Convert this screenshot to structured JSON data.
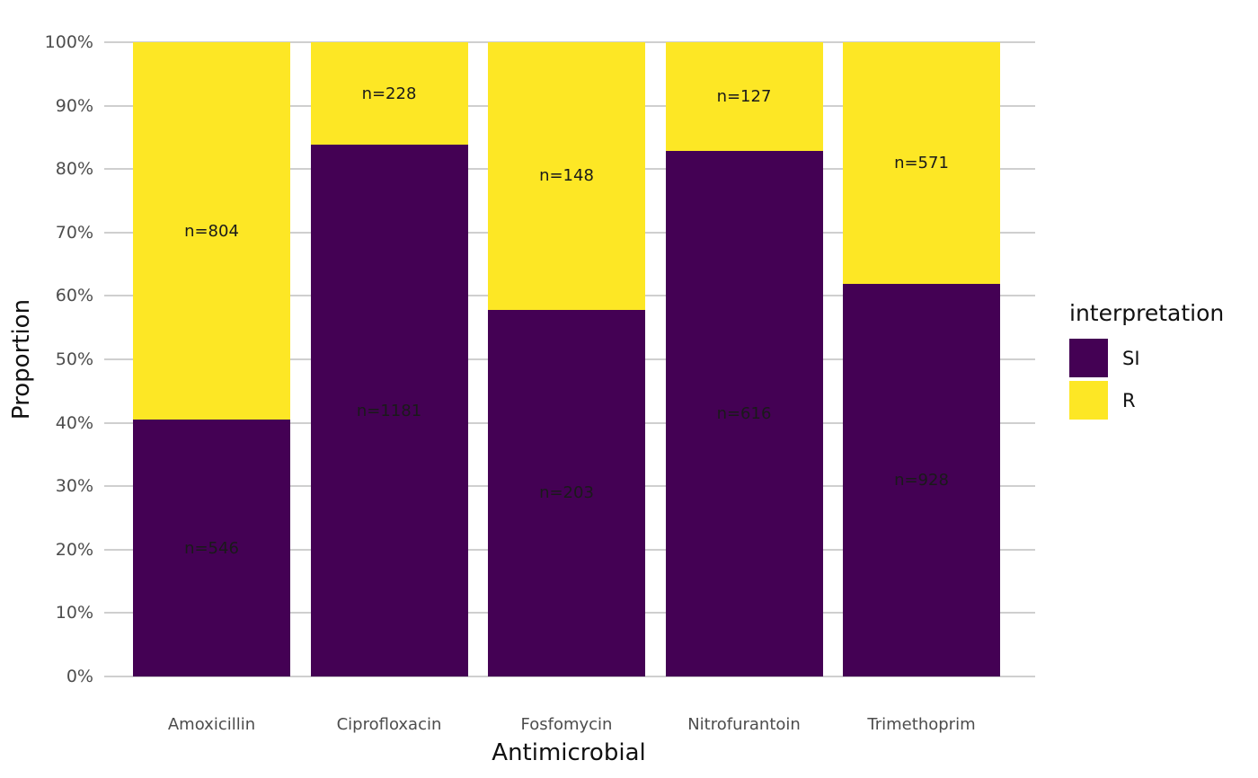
{
  "chart_data": {
    "type": "bar",
    "variant": "stacked-percent-vertical",
    "title": "",
    "xlabel": "Antimicrobial",
    "ylabel": "Proportion",
    "categories": [
      "Amoxicillin",
      "Ciprofloxacin",
      "Fosfomycin",
      "Nitrofurantoin",
      "Trimethoprim"
    ],
    "series": [
      {
        "name": "SI",
        "color": "#440154",
        "counts": [
          546,
          1181,
          203,
          616,
          928
        ],
        "labels": [
          "n=546",
          "n=1181",
          "n=203",
          "n=616",
          "n=928"
        ]
      },
      {
        "name": "R",
        "color": "#FDE725",
        "counts": [
          804,
          228,
          148,
          127,
          571
        ],
        "labels": [
          "n=804",
          "n=228",
          "n=148",
          "n=127",
          "n=571"
        ]
      }
    ],
    "si_proportion_percent": [
      40.4,
      83.8,
      57.8,
      82.9,
      61.9
    ],
    "y_ticks": [
      "0%",
      "10%",
      "20%",
      "30%",
      "40%",
      "50%",
      "60%",
      "70%",
      "80%",
      "90%",
      "100%"
    ],
    "ylim": [
      0,
      100
    ],
    "grid": "horizontal major only",
    "legend": {
      "title": "interpretation",
      "position": "right",
      "items": [
        {
          "label": "SI",
          "color": "#440154"
        },
        {
          "label": "R",
          "color": "#FDE725"
        }
      ]
    },
    "colors": {
      "si": "#440154",
      "r": "#FDE725",
      "grid": "#CFCFCF",
      "axis_text": "#4D4D4D",
      "axis_title": "#111111",
      "bar_label": "#1A1A1A",
      "background": "#FFFFFF"
    }
  }
}
